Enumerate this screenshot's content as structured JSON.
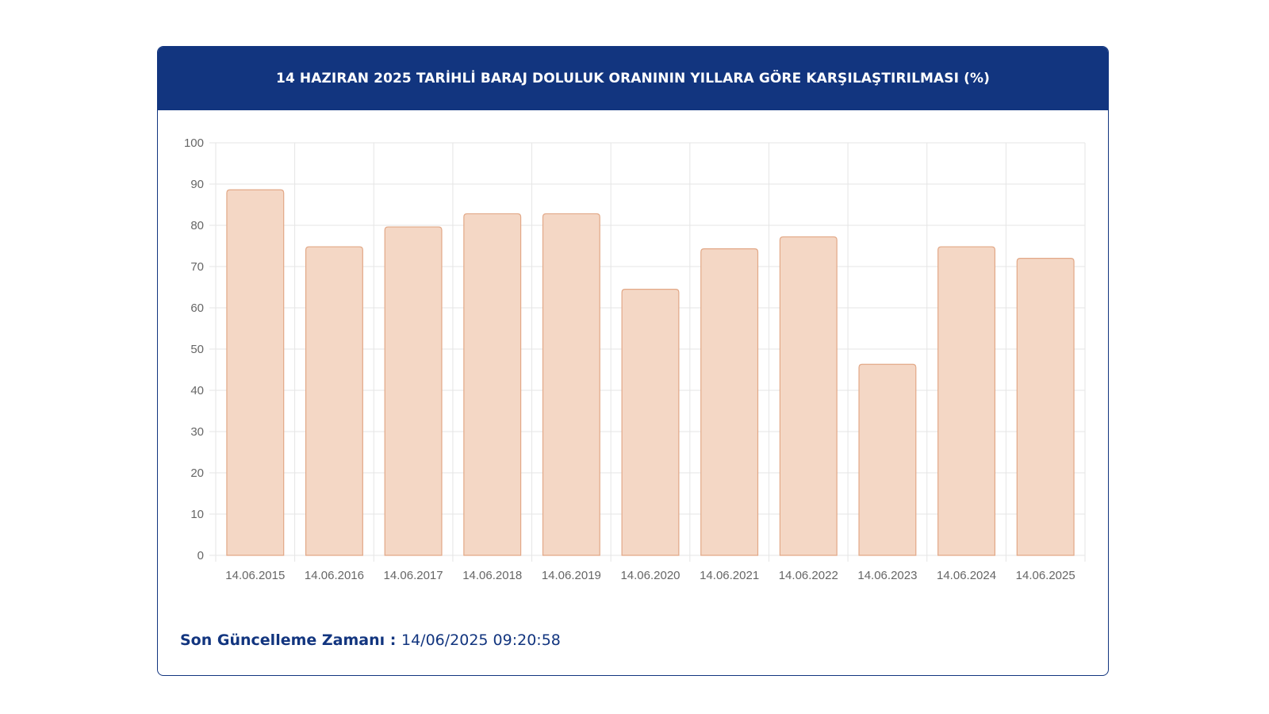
{
  "header": {
    "title": "14 HAZIRAN 2025 TARİHLİ BARAJ DOLULUK ORANININ YILLARA GÖRE KARŞILAŞTIRILMASI (%)"
  },
  "footer": {
    "label": "Son Güncelleme Zamanı",
    "separator": " : ",
    "value": "14/06/2025 09:20:58"
  },
  "colors": {
    "header_bg": "#12357f",
    "bar_fill": "#f4d7c5",
    "bar_stroke": "#e2a887",
    "grid": "#e5e5e5",
    "tick_text": "#666666"
  },
  "chart_data": {
    "type": "bar",
    "categories": [
      "14.06.2015",
      "14.06.2016",
      "14.06.2017",
      "14.06.2018",
      "14.06.2019",
      "14.06.2020",
      "14.06.2021",
      "14.06.2022",
      "14.06.2023",
      "14.06.2024",
      "14.06.2025"
    ],
    "values": [
      88.6,
      74.8,
      79.6,
      82.8,
      82.8,
      64.5,
      74.3,
      77.2,
      46.3,
      74.8,
      72.0
    ],
    "ylim": [
      0,
      100
    ],
    "yticks": [
      0,
      10,
      20,
      30,
      40,
      50,
      60,
      70,
      80,
      90,
      100
    ],
    "grid": true,
    "legend": "none"
  }
}
